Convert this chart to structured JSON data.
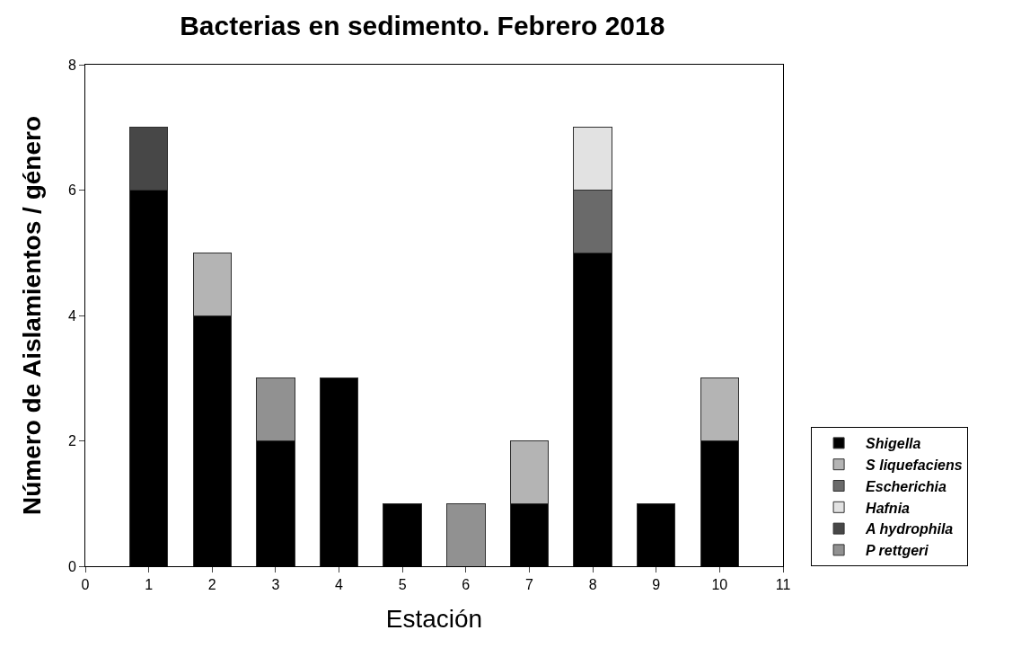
{
  "chart_data": {
    "type": "bar",
    "title": "Bacterias en sedimento. Febrero 2018",
    "xlabel": "Estación",
    "ylabel": "Número de Aislamientos / género",
    "x": [
      1,
      2,
      3,
      4,
      5,
      6,
      7,
      8,
      9,
      10
    ],
    "stacked": true,
    "series": [
      {
        "name": "Shigella",
        "color": "#000000",
        "values": [
          6,
          4,
          2,
          3,
          1,
          null,
          1,
          5,
          1,
          2
        ]
      },
      {
        "name": "S liquefaciens",
        "color": "#b4b4b4",
        "values": [
          null,
          1,
          null,
          null,
          null,
          null,
          1,
          null,
          null,
          1
        ]
      },
      {
        "name": "Escherichia",
        "color": "#6a6a6a",
        "values": [
          null,
          null,
          null,
          null,
          null,
          null,
          null,
          1,
          null,
          null
        ]
      },
      {
        "name": "Hafnia",
        "color": "#e2e2e2",
        "values": [
          null,
          null,
          null,
          null,
          null,
          null,
          null,
          1,
          null,
          null
        ]
      },
      {
        "name": "A hydrophila",
        "color": "#474747",
        "values": [
          1,
          null,
          null,
          null,
          null,
          null,
          null,
          null,
          null,
          null
        ]
      },
      {
        "name": "P rettgeri",
        "color": "#919191",
        "values": [
          null,
          null,
          1,
          null,
          null,
          1,
          null,
          null,
          null,
          null
        ]
      }
    ],
    "xlim": [
      0,
      11
    ],
    "xticks": [
      0,
      1,
      2,
      3,
      4,
      5,
      6,
      7,
      8,
      9,
      10,
      11
    ],
    "ylim": [
      0,
      8
    ],
    "yticks": [
      0,
      2,
      4,
      6,
      8
    ],
    "legend": "bottom right"
  }
}
